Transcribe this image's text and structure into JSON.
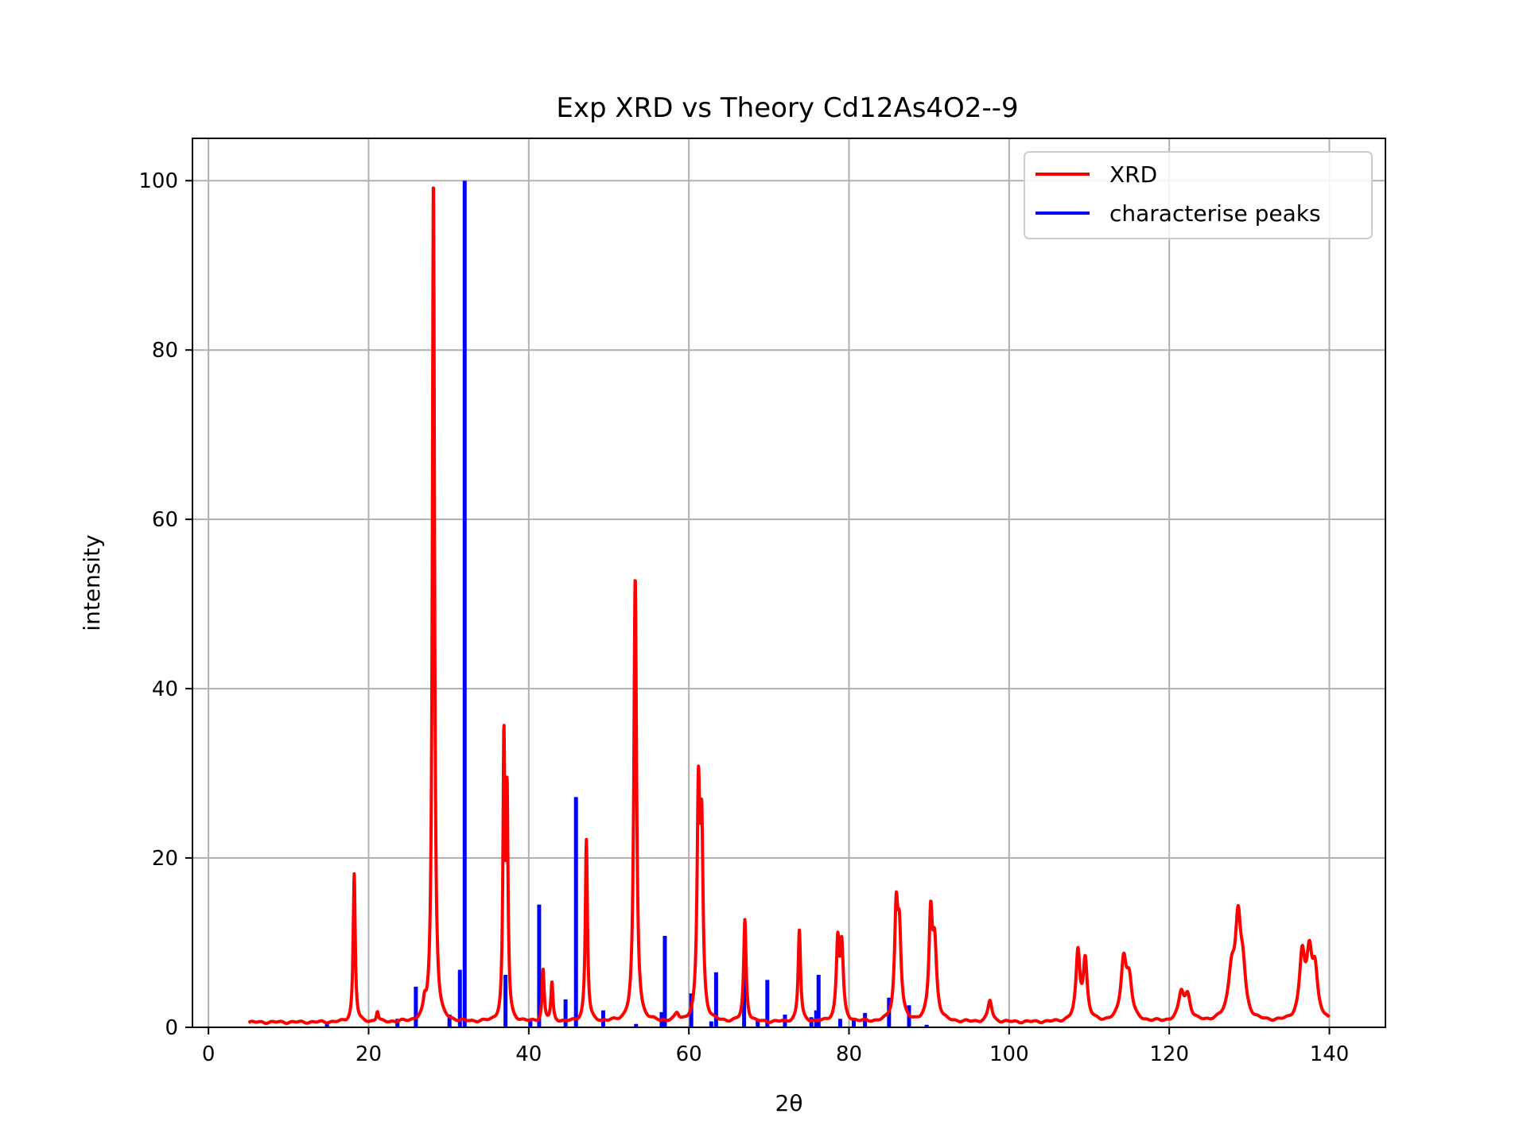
{
  "chart_data": {
    "type": "line",
    "title": "Exp XRD vs Theory Cd12As4O2--9",
    "xlabel": "2θ",
    "ylabel": "intensity",
    "xlim": [
      -2,
      147
    ],
    "ylim": [
      0,
      105
    ],
    "xticks": [
      0,
      20,
      40,
      60,
      80,
      100,
      120,
      140
    ],
    "yticks": [
      0,
      20,
      40,
      60,
      80,
      100
    ],
    "xtick_labels": [
      "0",
      "20",
      "40",
      "60",
      "80",
      "100",
      "120",
      "140"
    ],
    "ytick_labels": [
      "0",
      "20",
      "40",
      "60",
      "80",
      "100"
    ],
    "grid": true,
    "legend_position": "upper right",
    "colors": {
      "xrd": "#ff0000",
      "peaks": "#0000ff",
      "grid": "#b0b0b0"
    },
    "series": [
      {
        "name": "XRD",
        "kind": "profile",
        "x_range": [
          5,
          140
        ],
        "baseline": 0.6,
        "peaks": [
          [
            18.2,
            17.5,
            0.15
          ],
          [
            21.1,
            1.2,
            0.15
          ],
          [
            27.0,
            1.5,
            0.2
          ],
          [
            28.1,
            100,
            0.16
          ],
          [
            36.9,
            32.5,
            0.14
          ],
          [
            37.3,
            25.5,
            0.14
          ],
          [
            41.8,
            6.0,
            0.15
          ],
          [
            42.9,
            4.5,
            0.15
          ],
          [
            47.2,
            21.5,
            0.16
          ],
          [
            53.3,
            52.5,
            0.2
          ],
          [
            58.5,
            0.8,
            0.3
          ],
          [
            61.2,
            26.0,
            0.2
          ],
          [
            61.6,
            21.0,
            0.2
          ],
          [
            67.0,
            12.0,
            0.18
          ],
          [
            73.8,
            10.8,
            0.18
          ],
          [
            78.6,
            9.2,
            0.22
          ],
          [
            79.1,
            8.5,
            0.22
          ],
          [
            85.9,
            12.5,
            0.25
          ],
          [
            86.3,
            9.5,
            0.25
          ],
          [
            90.2,
            12.0,
            0.25
          ],
          [
            90.7,
            8.5,
            0.3
          ],
          [
            97.6,
            2.5,
            0.3
          ],
          [
            108.6,
            8.0,
            0.3
          ],
          [
            109.5,
            7.0,
            0.3
          ],
          [
            114.3,
            7.0,
            0.4
          ],
          [
            115.0,
            4.5,
            0.4
          ],
          [
            121.5,
            3.2,
            0.4
          ],
          [
            122.3,
            2.8,
            0.4
          ],
          [
            127.8,
            5.5,
            0.5
          ],
          [
            128.6,
            10.5,
            0.4
          ],
          [
            129.2,
            5.0,
            0.4
          ],
          [
            136.6,
            7.5,
            0.4
          ],
          [
            137.5,
            7.0,
            0.4
          ],
          [
            138.2,
            5.5,
            0.4
          ]
        ]
      },
      {
        "name": "characterise peaks",
        "kind": "sticks",
        "x": [
          14.8,
          23.6,
          25.9,
          30.1,
          31.4,
          32.0,
          37.1,
          40.2,
          41.3,
          44.6,
          45.9,
          49.3,
          53.4,
          56.6,
          57.0,
          60.3,
          62.8,
          63.4,
          66.9,
          68.6,
          69.8,
          72.0,
          75.3,
          75.9,
          76.2,
          78.9,
          80.6,
          82.0,
          85.0,
          87.5,
          89.7
        ],
        "y": [
          0.5,
          1.0,
          4.8,
          1.5,
          6.8,
          100,
          6.2,
          1.0,
          14.5,
          3.3,
          27.2,
          2.0,
          0.4,
          1.8,
          10.8,
          4.0,
          0.7,
          6.5,
          6.4,
          0.8,
          5.6,
          1.5,
          1.2,
          2.0,
          6.2,
          1.0,
          0.8,
          1.7,
          3.5,
          2.6,
          0.3
        ]
      }
    ]
  }
}
